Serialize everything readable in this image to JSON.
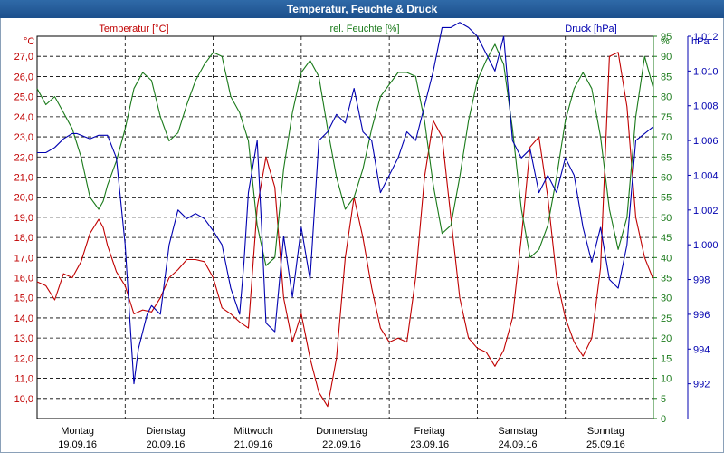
{
  "window": {
    "title": "Temperatur, Feuchte & Druck"
  },
  "colors": {
    "temperature": "#c00000",
    "humidity": "#1a7a1a",
    "pressure": "#0000b0",
    "grid": "#000000",
    "title_bar": "#1c4f8c"
  },
  "chart_data": {
    "type": "line",
    "title": "Temperatur, Feuchte & Druck",
    "grid": true,
    "x_days": [
      {
        "day": "Montag",
        "date": "19.09.16"
      },
      {
        "day": "Dienstag",
        "date": "20.09.16"
      },
      {
        "day": "Mittwoch",
        "date": "21.09.16"
      },
      {
        "day": "Donnerstag",
        "date": "22.09.16"
      },
      {
        "day": "Freitag",
        "date": "23.09.16"
      },
      {
        "day": "Samstag",
        "date": "24.09.16"
      },
      {
        "day": "Sonntag",
        "date": "25.09.16"
      }
    ],
    "axes": {
      "temperature": {
        "label": "Temperatur [°C]",
        "unit": "°C",
        "min": 9.0,
        "max": 28.0,
        "ticks": [
          "10,0",
          "11,0",
          "12,0",
          "13,0",
          "14,0",
          "15,0",
          "16,0",
          "17,0",
          "18,0",
          "19,0",
          "20,0",
          "21,0",
          "22,0",
          "23,0",
          "24,0",
          "25,0",
          "26,0",
          "27,0"
        ]
      },
      "humidity": {
        "label": "rel. Feuchte [%]",
        "unit": "%",
        "min": 0,
        "max": 95,
        "ticks": [
          "0",
          "5",
          "10",
          "15",
          "20",
          "25",
          "30",
          "35",
          "40",
          "45",
          "50",
          "55",
          "60",
          "65",
          "70",
          "75",
          "80",
          "85",
          "90",
          "95"
        ]
      },
      "pressure": {
        "label": "Druck [hPa]",
        "unit": "hPa",
        "min": 990,
        "max": 1012,
        "ticks": [
          "992",
          "994",
          "996",
          "998",
          "1.000",
          "1.002",
          "1.004",
          "1.006",
          "1.008",
          "1.010",
          "1.012"
        ]
      }
    },
    "series": [
      {
        "name": "Temperatur [°C]",
        "axis": "temperature",
        "x": [
          0,
          0.1,
          0.2,
          0.3,
          0.4,
          0.5,
          0.6,
          0.7,
          0.75,
          0.8,
          0.9,
          1.0,
          1.1,
          1.2,
          1.3,
          1.4,
          1.5,
          1.6,
          1.7,
          1.8,
          1.9,
          2.0,
          2.1,
          2.2,
          2.3,
          2.4,
          2.5,
          2.6,
          2.7,
          2.8,
          2.9,
          3.0,
          3.1,
          3.2,
          3.3,
          3.4,
          3.5,
          3.6,
          3.7,
          3.8,
          3.9,
          4.0,
          4.1,
          4.2,
          4.3,
          4.4,
          4.5,
          4.6,
          4.7,
          4.8,
          4.9,
          5.0,
          5.1,
          5.2,
          5.3,
          5.4,
          5.5,
          5.6,
          5.7,
          5.8,
          5.9,
          6.0,
          6.1,
          6.2,
          6.3,
          6.4,
          6.5,
          6.6,
          6.7,
          6.8,
          6.9,
          7.0
        ],
        "y": [
          15.8,
          15.6,
          14.9,
          16.2,
          16.0,
          16.8,
          18.2,
          18.9,
          18.5,
          17.6,
          16.3,
          15.6,
          14.2,
          14.4,
          14.3,
          15.0,
          16.0,
          16.4,
          16.9,
          16.9,
          16.8,
          16.0,
          14.5,
          14.2,
          13.8,
          13.5,
          19.5,
          22.0,
          20.5,
          15.0,
          12.8,
          14.2,
          12.0,
          10.3,
          9.6,
          12.0,
          17.0,
          20.0,
          18.0,
          15.5,
          13.5,
          12.8,
          13.0,
          12.8,
          16.0,
          21.0,
          23.8,
          23.0,
          19.0,
          15.0,
          13.0,
          12.5,
          12.3,
          11.6,
          12.4,
          14.0,
          18.0,
          22.5,
          23.0,
          20.0,
          16.0,
          14.0,
          12.8,
          12.1,
          13.0,
          16.5,
          27.0,
          27.2,
          24.5,
          19.0,
          17.0,
          15.9
        ]
      },
      {
        "name": "rel. Feuchte [%]",
        "axis": "humidity",
        "x": [
          0,
          0.1,
          0.2,
          0.3,
          0.4,
          0.5,
          0.6,
          0.7,
          0.75,
          0.8,
          0.9,
          1.0,
          1.1,
          1.2,
          1.3,
          1.4,
          1.5,
          1.6,
          1.7,
          1.8,
          1.9,
          2.0,
          2.1,
          2.2,
          2.3,
          2.4,
          2.5,
          2.6,
          2.7,
          2.8,
          2.9,
          3.0,
          3.1,
          3.2,
          3.3,
          3.4,
          3.5,
          3.6,
          3.7,
          3.8,
          3.9,
          4.0,
          4.1,
          4.2,
          4.3,
          4.4,
          4.5,
          4.6,
          4.7,
          4.8,
          4.9,
          5.0,
          5.1,
          5.2,
          5.3,
          5.4,
          5.5,
          5.6,
          5.7,
          5.8,
          5.9,
          6.0,
          6.1,
          6.2,
          6.3,
          6.4,
          6.5,
          6.6,
          6.7,
          6.8,
          6.9,
          7.0
        ],
        "y": [
          82,
          78,
          80,
          76,
          72,
          65,
          55,
          52,
          54,
          58,
          64,
          72,
          82,
          86,
          84,
          75,
          69,
          71,
          78,
          84,
          88,
          91,
          90,
          80,
          76,
          69,
          48,
          38,
          40,
          62,
          76,
          86,
          89,
          85,
          72,
          60,
          52,
          55,
          62,
          72,
          80,
          83,
          86,
          86,
          85,
          74,
          58,
          46,
          48,
          60,
          74,
          84,
          89,
          93,
          88,
          72,
          52,
          40,
          42,
          48,
          60,
          74,
          82,
          86,
          82,
          70,
          52,
          42,
          50,
          75,
          90,
          82
        ],
        "_scale_note": "humidity % plotted on 0..95 axis"
      },
      {
        "name": "Druck [hPa]",
        "axis": "pressure",
        "x": [
          0,
          0.1,
          0.2,
          0.3,
          0.4,
          0.45,
          0.5,
          0.6,
          0.7,
          0.8,
          0.9,
          1.0,
          1.05,
          1.1,
          1.15,
          1.2,
          1.25,
          1.3,
          1.4,
          1.5,
          1.6,
          1.7,
          1.8,
          1.9,
          2.0,
          2.1,
          2.2,
          2.3,
          2.35,
          2.4,
          2.5,
          2.55,
          2.6,
          2.7,
          2.8,
          2.9,
          3.0,
          3.1,
          3.2,
          3.3,
          3.4,
          3.5,
          3.6,
          3.7,
          3.8,
          3.9,
          4.0,
          4.1,
          4.2,
          4.3,
          4.4,
          4.5,
          4.6,
          4.7,
          4.8,
          4.9,
          5.0,
          5.1,
          5.2,
          5.3,
          5.4,
          5.5,
          5.6,
          5.7,
          5.8,
          5.9,
          6.0,
          6.1,
          6.2,
          6.3,
          6.4,
          6.5,
          6.6,
          6.7,
          6.8,
          6.9,
          7.0
        ],
        "y": [
          1005.3,
          1005.3,
          1005.6,
          1006.1,
          1006.4,
          1006.4,
          1006.3,
          1006.1,
          1006.3,
          1006.3,
          1005.0,
          1000.0,
          996.0,
          992.0,
          994.0,
          995.0,
          996.0,
          996.5,
          996.0,
          1000.0,
          1002.0,
          1001.5,
          1001.8,
          1001.5,
          1000.8,
          1000.0,
          997.5,
          996.0,
          999.0,
          1003.0,
          1006.0,
          1001.0,
          995.5,
          995.0,
          1000.5,
          997.0,
          1001.0,
          998.0,
          1006.0,
          1006.5,
          1007.5,
          1007.0,
          1009.0,
          1006.5,
          1006.0,
          1003.0,
          1004.0,
          1005.0,
          1006.5,
          1006.0,
          1008.0,
          1010.0,
          1012.5,
          1012.5,
          1012.8,
          1012.5,
          1012.0,
          1011.0,
          1010.0,
          1012.0,
          1006.0,
          1005.0,
          1005.5,
          1003.0,
          1004.0,
          1003.0,
          1005.0,
          1004.0,
          1001.0,
          999.0,
          1001.0,
          998.0,
          997.5,
          1000.0,
          1006.0,
          1006.4,
          1006.8
        ]
      }
    ]
  }
}
